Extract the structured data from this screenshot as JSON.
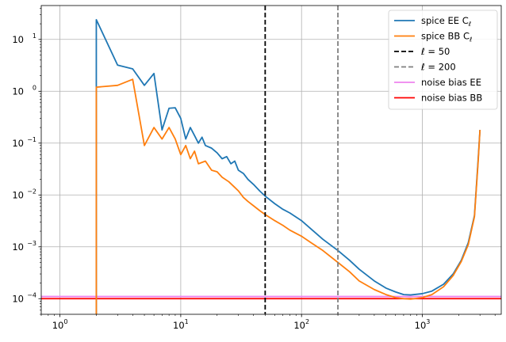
{
  "chart_data": {
    "type": "line",
    "title": "",
    "xlabel": "",
    "ylabel": "",
    "xscale": "log",
    "yscale": "log",
    "xlim": [
      0.7,
      4500
    ],
    "ylim": [
      5e-05,
      45
    ],
    "grid": true,
    "legend_position": "top-right",
    "x_ticks": [
      {
        "base": "10",
        "exp": "0"
      },
      {
        "base": "10",
        "exp": "1"
      },
      {
        "base": "10",
        "exp": "2"
      },
      {
        "base": "10",
        "exp": "3"
      }
    ],
    "y_ticks": [
      {
        "base": "10",
        "exp": "−4"
      },
      {
        "base": "10",
        "exp": "−3"
      },
      {
        "base": "10",
        "exp": "−2"
      },
      {
        "base": "10",
        "exp": "−1"
      },
      {
        "base": "10",
        "exp": "0"
      },
      {
        "base": "10",
        "exp": "1"
      }
    ],
    "series": [
      {
        "name": "spice EE C",
        "name_sub": "ℓ",
        "color": "#1f77b4",
        "style": "solid",
        "points": [
          [
            2,
            1e-05
          ],
          [
            2,
            24
          ],
          [
            3,
            3.2
          ],
          [
            4,
            2.7
          ],
          [
            5,
            1.3
          ],
          [
            6,
            2.2
          ],
          [
            7,
            0.18
          ],
          [
            8,
            0.47
          ],
          [
            9,
            0.48
          ],
          [
            10,
            0.3
          ],
          [
            11,
            0.12
          ],
          [
            12,
            0.2
          ],
          [
            13,
            0.14
          ],
          [
            14,
            0.1
          ],
          [
            15,
            0.13
          ],
          [
            16,
            0.09
          ],
          [
            18,
            0.08
          ],
          [
            20,
            0.065
          ],
          [
            22,
            0.05
          ],
          [
            24,
            0.055
          ],
          [
            26,
            0.04
          ],
          [
            28,
            0.045
          ],
          [
            30,
            0.03
          ],
          [
            33,
            0.026
          ],
          [
            36,
            0.02
          ],
          [
            40,
            0.016
          ],
          [
            45,
            0.012
          ],
          [
            50,
            0.0095
          ],
          [
            60,
            0.0068
          ],
          [
            70,
            0.0053
          ],
          [
            80,
            0.0045
          ],
          [
            100,
            0.0032
          ],
          [
            120,
            0.0022
          ],
          [
            150,
            0.0014
          ],
          [
            200,
            0.00085
          ],
          [
            250,
            0.00055
          ],
          [
            300,
            0.00037
          ],
          [
            400,
            0.00022
          ],
          [
            500,
            0.00016
          ],
          [
            600,
            0.000135
          ],
          [
            700,
            0.00012
          ],
          [
            800,
            0.000118
          ],
          [
            1000,
            0.000125
          ],
          [
            1200,
            0.00014
          ],
          [
            1500,
            0.00019
          ],
          [
            1800,
            0.0003
          ],
          [
            2100,
            0.00055
          ],
          [
            2400,
            0.0012
          ],
          [
            2700,
            0.004
          ],
          [
            2900,
            0.05
          ],
          [
            3000,
            0.18
          ]
        ]
      },
      {
        "name": "spice BB C",
        "name_sub": "ℓ",
        "color": "#ff7f0e",
        "style": "solid",
        "points": [
          [
            2,
            1e-05
          ],
          [
            2,
            1.2
          ],
          [
            3,
            1.3
          ],
          [
            4,
            1.7
          ],
          [
            5,
            0.09
          ],
          [
            6,
            0.2
          ],
          [
            7,
            0.12
          ],
          [
            8,
            0.2
          ],
          [
            9,
            0.12
          ],
          [
            10,
            0.06
          ],
          [
            11,
            0.09
          ],
          [
            12,
            0.05
          ],
          [
            13,
            0.07
          ],
          [
            14,
            0.04
          ],
          [
            16,
            0.045
          ],
          [
            18,
            0.03
          ],
          [
            20,
            0.028
          ],
          [
            22,
            0.022
          ],
          [
            25,
            0.018
          ],
          [
            28,
            0.014
          ],
          [
            30,
            0.012
          ],
          [
            33,
            0.009
          ],
          [
            36,
            0.0075
          ],
          [
            40,
            0.0062
          ],
          [
            45,
            0.005
          ],
          [
            50,
            0.0042
          ],
          [
            60,
            0.0032
          ],
          [
            70,
            0.0026
          ],
          [
            80,
            0.0021
          ],
          [
            100,
            0.0016
          ],
          [
            120,
            0.0012
          ],
          [
            150,
            0.00085
          ],
          [
            200,
            0.0005
          ],
          [
            250,
            0.00033
          ],
          [
            300,
            0.00022
          ],
          [
            400,
            0.00015
          ],
          [
            500,
            0.00012
          ],
          [
            600,
            0.000105
          ],
          [
            700,
            0.0001
          ],
          [
            800,
            9.8e-05
          ],
          [
            1000,
            0.000105
          ],
          [
            1200,
            0.00012
          ],
          [
            1500,
            0.00017
          ],
          [
            1800,
            0.00028
          ],
          [
            2100,
            0.00052
          ],
          [
            2400,
            0.0011
          ],
          [
            2700,
            0.0038
          ],
          [
            2900,
            0.045
          ],
          [
            3000,
            0.18
          ]
        ]
      },
      {
        "name": "ℓ = 50",
        "color": "#000000",
        "style": "dashed",
        "vline": 50
      },
      {
        "name": "ℓ = 200",
        "color": "#808080",
        "style": "dashed",
        "vline": 200
      },
      {
        "name": "noise bias EE",
        "color": "#ee82ee",
        "style": "solid",
        "hline": 0.00011
      },
      {
        "name": "noise bias BB",
        "color": "#ff0000",
        "style": "solid",
        "hline": 0.0001
      }
    ]
  }
}
